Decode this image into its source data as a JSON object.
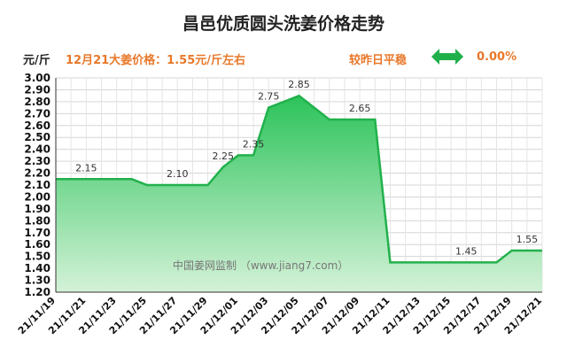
{
  "header": {
    "title": "昌邑优质圆头洗姜价格走势",
    "unit": "元/斤",
    "price_text": "12月21大姜价格：1.55元/斤左右",
    "compare_text": "较昨日平稳",
    "change_pct": "0.00%"
  },
  "watermark": "中国姜网监制 （www.jiang7.com）",
  "colors": {
    "accent": "#e8782a",
    "line": "#22b14c",
    "arrow": "#20b04a"
  },
  "chart_data": {
    "type": "area",
    "title": "昌邑优质圆头洗姜价格走势",
    "ylim": [
      1.2,
      3.0
    ],
    "yticks": [
      "1.20",
      "1.30",
      "1.40",
      "1.50",
      "1.60",
      "1.70",
      "1.80",
      "1.90",
      "2.00",
      "2.10",
      "2.20",
      "2.30",
      "2.40",
      "2.50",
      "2.60",
      "2.70",
      "2.80",
      "2.90",
      "3.00"
    ],
    "xtick_labels": [
      "21/11/19",
      "21/11/21",
      "21/11/23",
      "21/11/25",
      "21/11/27",
      "21/11/29",
      "21/12/01",
      "21/12/03",
      "21/12/05",
      "21/12/07",
      "21/12/09",
      "21/12/11",
      "21/12/13",
      "21/12/15",
      "21/12/17",
      "21/12/19",
      "21/12/21"
    ],
    "x": [
      "21/11/19",
      "21/11/20",
      "21/11/21",
      "21/11/22",
      "21/11/23",
      "21/11/24",
      "21/11/25",
      "21/11/26",
      "21/11/27",
      "21/11/28",
      "21/11/29",
      "21/11/30",
      "21/12/01",
      "21/12/02",
      "21/12/03",
      "21/12/04",
      "21/12/05",
      "21/12/06",
      "21/12/07",
      "21/12/08",
      "21/12/09",
      "21/12/10",
      "21/12/11",
      "21/12/12",
      "21/12/13",
      "21/12/14",
      "21/12/15",
      "21/12/16",
      "21/12/17",
      "21/12/18",
      "21/12/19",
      "21/12/20",
      "21/12/21"
    ],
    "values": [
      2.15,
      2.15,
      2.15,
      2.15,
      2.15,
      2.15,
      2.1,
      2.1,
      2.1,
      2.1,
      2.1,
      2.25,
      2.35,
      2.35,
      2.75,
      2.8,
      2.85,
      2.75,
      2.65,
      2.65,
      2.65,
      2.65,
      1.45,
      1.45,
      1.45,
      1.45,
      1.45,
      1.45,
      1.45,
      1.45,
      1.55,
      1.55,
      1.55
    ],
    "data_labels": [
      {
        "x": "21/11/21",
        "text": "2.15"
      },
      {
        "x": "21/11/27",
        "text": "2.10"
      },
      {
        "x": "21/11/30",
        "text": "2.25"
      },
      {
        "x": "21/12/02",
        "text": "2.35"
      },
      {
        "x": "21/12/03",
        "text": "2.75"
      },
      {
        "x": "21/12/05",
        "text": "2.85"
      },
      {
        "x": "21/12/09",
        "text": "2.65"
      },
      {
        "x": "21/12/16",
        "text": "1.45"
      },
      {
        "x": "21/12/20",
        "text": "1.55"
      }
    ],
    "grid": true
  }
}
